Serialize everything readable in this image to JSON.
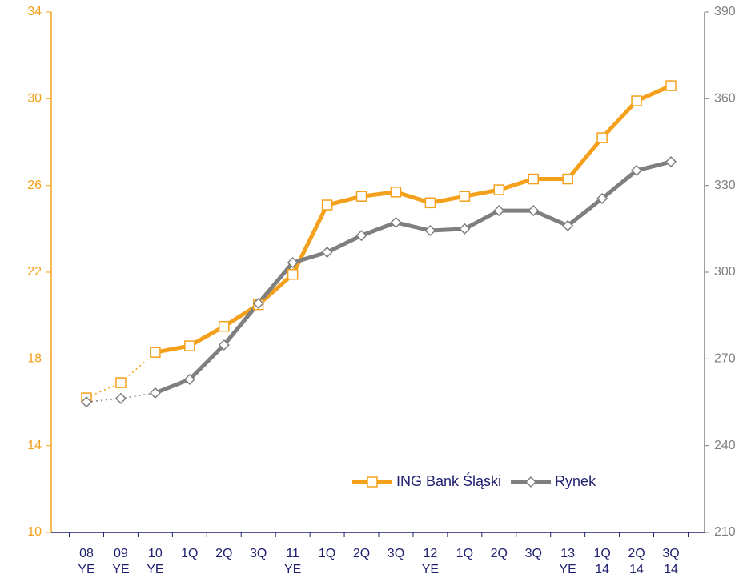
{
  "chart_data": {
    "type": "line",
    "categories": [
      "08 YE",
      "09 YE",
      "10 YE",
      "1Q",
      "2Q",
      "3Q",
      "11 YE",
      "1Q",
      "2Q",
      "3Q",
      "12 YE",
      "1Q",
      "2Q",
      "3Q",
      "13 YE",
      "1Q 14",
      "2Q 14",
      "3Q 14"
    ],
    "series": [
      {
        "name": "ING Bank Śląski",
        "color": "#f5a01a",
        "marker": "square",
        "dotted_until": 2,
        "values": [
          16.2,
          16.9,
          18.3,
          18.6,
          19.5,
          20.5,
          21.9,
          25.1,
          25.5,
          25.7,
          25.2,
          25.5,
          25.8,
          26.3,
          26.3,
          28.2,
          29.9,
          30.6
        ]
      },
      {
        "name": "Rynek",
        "color": "#7f7f7f",
        "marker": "diamond",
        "axis": "y2",
        "dotted_until": 2,
        "values": [
          255.1,
          256.3,
          258.2,
          262.9,
          274.8,
          289.2,
          303.3,
          306.9,
          312.7,
          317.2,
          314.4,
          315.0,
          321.3,
          321.3,
          316.1,
          325.5,
          335.2,
          338.2
        ]
      }
    ],
    "ylim": [
      10,
      34
    ],
    "yticks": [
      10,
      14,
      18,
      22,
      26,
      30,
      34
    ],
    "y2lim": [
      210,
      390
    ],
    "y2ticks": [
      210,
      240,
      270,
      300,
      330,
      360,
      390
    ],
    "legend": "lower-right"
  }
}
